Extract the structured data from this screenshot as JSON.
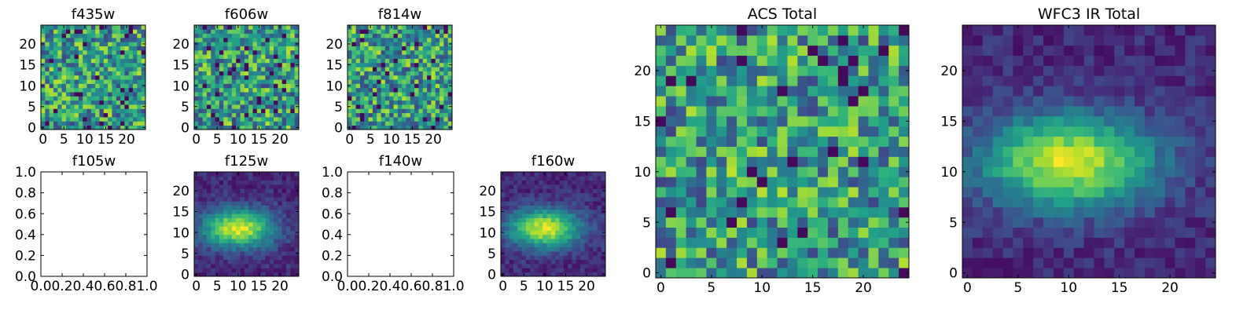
{
  "chart_data": [
    {
      "type": "heatmap",
      "title": "f435w",
      "colormap": "viridis",
      "grid_size": 25,
      "pattern": "noise",
      "seed": 11,
      "xlim": [
        -0.5,
        24.5
      ],
      "ylim": [
        -0.5,
        24.5
      ],
      "xticks": [
        0,
        5,
        10,
        15,
        20
      ],
      "yticks": [
        0,
        5,
        10,
        15,
        20
      ],
      "xtick_labels": [
        "0",
        "5",
        "10",
        "15",
        "20"
      ],
      "ytick_labels": [
        "0",
        "5",
        "10",
        "15",
        "20"
      ]
    },
    {
      "type": "heatmap",
      "title": "f606w",
      "colormap": "viridis",
      "grid_size": 25,
      "pattern": "noise",
      "seed": 23,
      "xlim": [
        -0.5,
        24.5
      ],
      "ylim": [
        -0.5,
        24.5
      ],
      "xticks": [
        0,
        5,
        10,
        15,
        20
      ],
      "yticks": [
        0,
        5,
        10,
        15,
        20
      ],
      "xtick_labels": [
        "0",
        "5",
        "10",
        "15",
        "20"
      ],
      "ytick_labels": [
        "0",
        "5",
        "10",
        "15",
        "20"
      ]
    },
    {
      "type": "heatmap",
      "title": "f814w",
      "colormap": "viridis",
      "grid_size": 25,
      "pattern": "noise",
      "seed": 37,
      "xlim": [
        -0.5,
        24.5
      ],
      "ylim": [
        -0.5,
        24.5
      ],
      "xticks": [
        0,
        5,
        10,
        15,
        20
      ],
      "yticks": [
        0,
        5,
        10,
        15,
        20
      ],
      "xtick_labels": [
        "0",
        "5",
        "10",
        "15",
        "20"
      ],
      "ytick_labels": [
        "0",
        "5",
        "10",
        "15",
        "20"
      ]
    },
    {
      "type": "empty",
      "title": "f105w",
      "xlim": [
        0,
        1
      ],
      "ylim": [
        0,
        1
      ],
      "xticks": [
        0,
        0.2,
        0.4,
        0.6,
        0.8,
        1.0
      ],
      "yticks": [
        0,
        0.2,
        0.4,
        0.6,
        0.8,
        1.0
      ],
      "xtick_labels": [
        "0.0",
        "0.2",
        "0.4",
        "0.6",
        "0.8",
        "1.0"
      ],
      "ytick_labels": [
        "0.0",
        "0.2",
        "0.4",
        "0.6",
        "0.8",
        "1.0"
      ]
    },
    {
      "type": "heatmap",
      "title": "f125w",
      "colormap": "viridis",
      "grid_size": 25,
      "pattern": "source",
      "seed": 53,
      "source_center": [
        10,
        11
      ],
      "xlim": [
        -0.5,
        24.5
      ],
      "ylim": [
        -0.5,
        24.5
      ],
      "xticks": [
        0,
        5,
        10,
        15,
        20
      ],
      "yticks": [
        0,
        5,
        10,
        15,
        20
      ],
      "xtick_labels": [
        "0",
        "5",
        "10",
        "15",
        "20"
      ],
      "ytick_labels": [
        "0",
        "5",
        "10",
        "15",
        "20"
      ]
    },
    {
      "type": "empty",
      "title": "f140w",
      "xlim": [
        0,
        1
      ],
      "ylim": [
        0,
        1
      ],
      "xticks": [
        0,
        0.2,
        0.4,
        0.6,
        0.8,
        1.0
      ],
      "yticks": [
        0,
        0.2,
        0.4,
        0.6,
        0.8,
        1.0
      ],
      "xtick_labels": [
        "0.0",
        "0.2",
        "0.4",
        "0.6",
        "0.8",
        "1.0"
      ],
      "ytick_labels": [
        "0.0",
        "0.2",
        "0.4",
        "0.6",
        "0.8",
        "1.0"
      ]
    },
    {
      "type": "heatmap",
      "title": "f160w",
      "colormap": "viridis",
      "grid_size": 25,
      "pattern": "source",
      "seed": 71,
      "source_center": [
        10,
        11
      ],
      "xlim": [
        -0.5,
        24.5
      ],
      "ylim": [
        -0.5,
        24.5
      ],
      "xticks": [
        0,
        5,
        10,
        15,
        20
      ],
      "yticks": [
        0,
        5,
        10,
        15,
        20
      ],
      "xtick_labels": [
        "0",
        "5",
        "10",
        "15",
        "20"
      ],
      "ytick_labels": [
        "0",
        "5",
        "10",
        "15",
        "20"
      ]
    },
    {
      "type": "heatmap",
      "title": "ACS Total",
      "colormap": "viridis",
      "grid_size": 25,
      "pattern": "noise",
      "seed": 89,
      "xlim": [
        -0.5,
        24.5
      ],
      "ylim": [
        -0.5,
        24.5
      ],
      "xticks": [
        0,
        5,
        10,
        15,
        20
      ],
      "yticks": [
        0,
        5,
        10,
        15,
        20
      ],
      "xtick_labels": [
        "0",
        "5",
        "10",
        "15",
        "20"
      ],
      "ytick_labels": [
        "0",
        "5",
        "10",
        "15",
        "20"
      ]
    },
    {
      "type": "heatmap",
      "title": "WFC3 IR Total",
      "colormap": "viridis",
      "grid_size": 25,
      "pattern": "source",
      "seed": 97,
      "source_center": [
        10,
        11
      ],
      "xlim": [
        -0.5,
        24.5
      ],
      "ylim": [
        -0.5,
        24.5
      ],
      "xticks": [
        0,
        5,
        10,
        15,
        20
      ],
      "yticks": [
        0,
        5,
        10,
        15,
        20
      ],
      "xtick_labels": [
        "0",
        "5",
        "10",
        "15",
        "20"
      ],
      "ytick_labels": [
        "0",
        "5",
        "10",
        "15",
        "20"
      ]
    }
  ]
}
